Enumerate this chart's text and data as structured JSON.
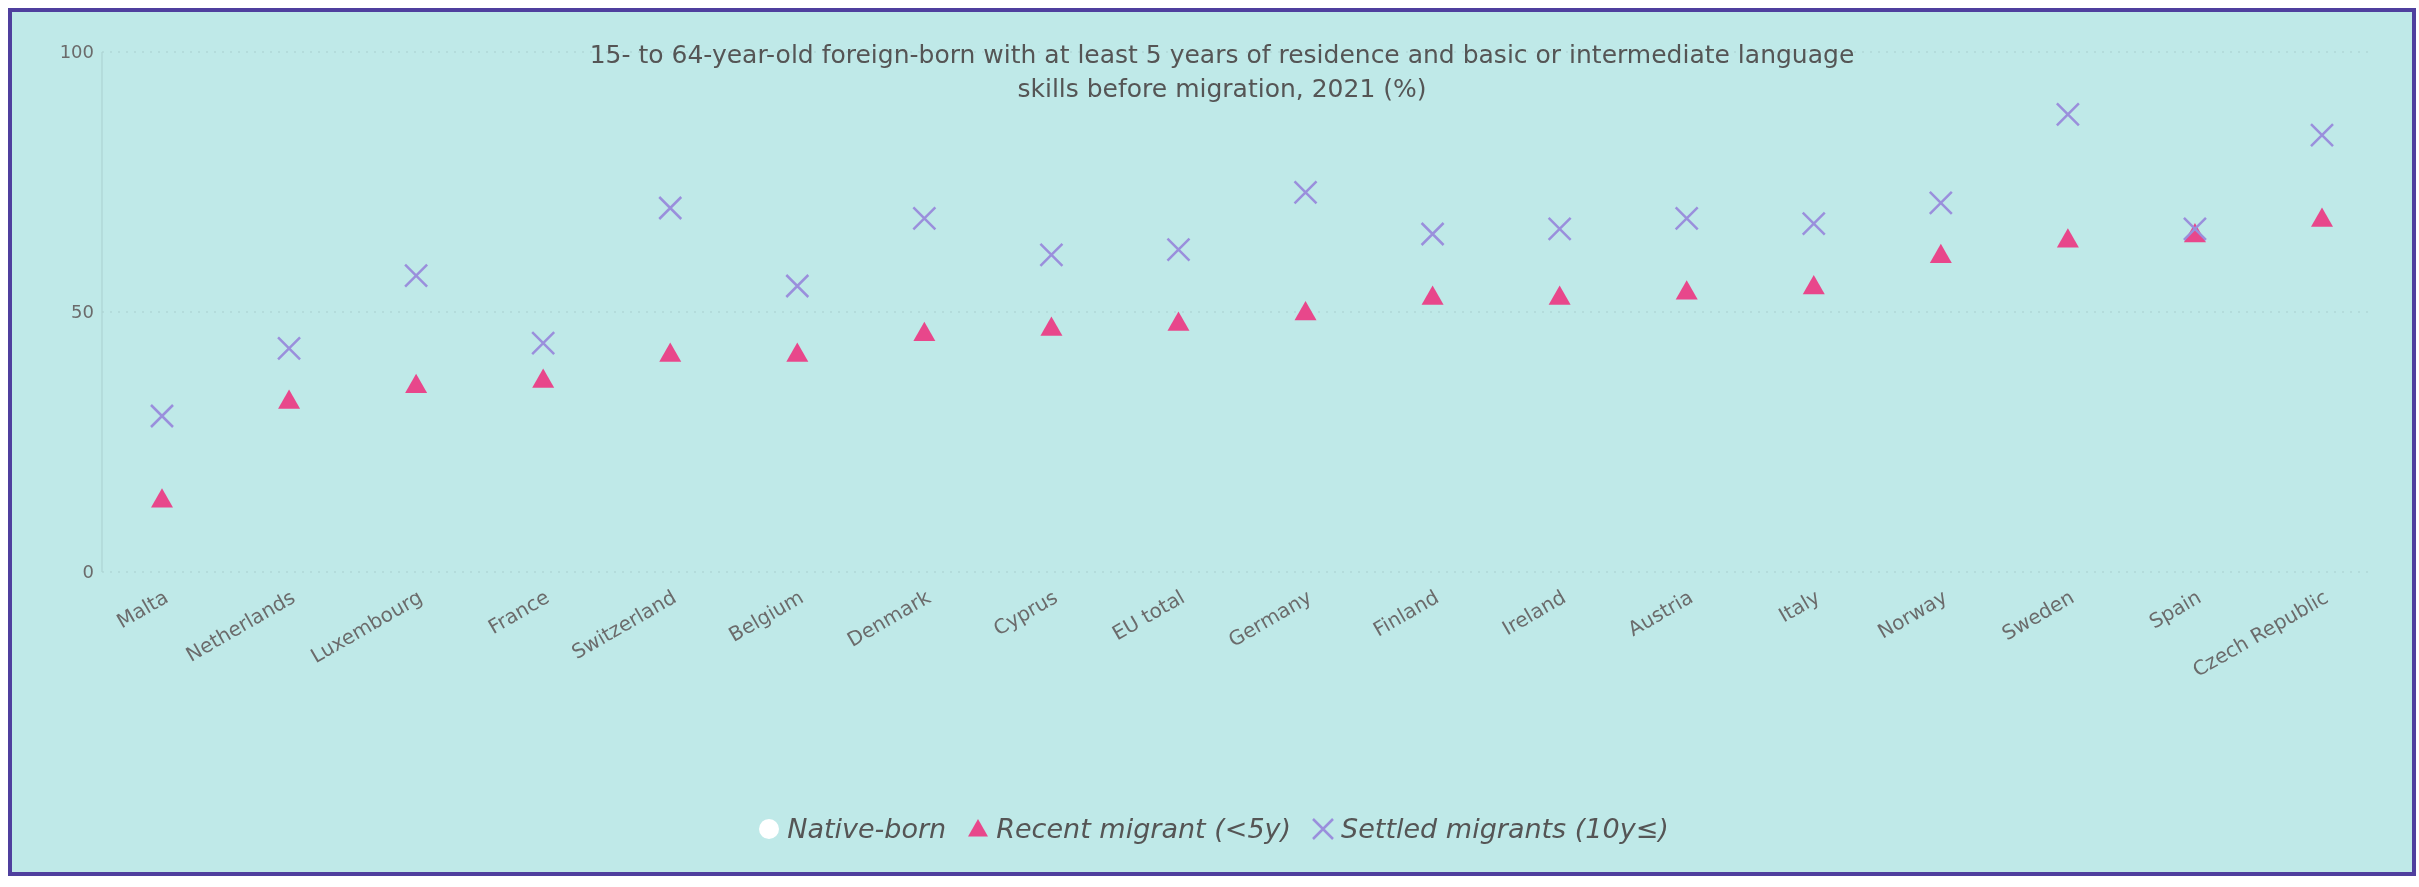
{
  "chart_data": {
    "type": "scatter",
    "title": "15- to 64-year-old foreign-born with at least 5 years of residence and basic or intermediate language skills before migration, 2021 (%)",
    "categories": [
      "Malta",
      "Netherlands",
      "Luxembourg",
      "France",
      "Switzerland",
      "Belgium",
      "Denmark",
      "Cyprus",
      "EU total",
      "Germany",
      "Finland",
      "Ireland",
      "Austria",
      "Italy",
      "Norway",
      "Sweden",
      "Spain",
      "Czech Republic"
    ],
    "series": [
      {
        "name": "Native-born",
        "color": "#ffffff",
        "marker": "circle",
        "values": [
          null,
          null,
          null,
          null,
          null,
          null,
          null,
          null,
          null,
          null,
          null,
          null,
          null,
          null,
          null,
          null,
          null,
          null
        ]
      },
      {
        "name": "Recent migrant (<5y)",
        "color": "#e8478b",
        "marker": "triangle",
        "values": [
          14,
          33,
          36,
          37,
          42,
          42,
          46,
          47,
          48,
          50,
          53,
          53,
          54,
          55,
          61,
          64,
          65,
          68
        ]
      },
      {
        "name": "Settled migrants (10y≤)",
        "color": "#9a8fdc",
        "marker": "cross",
        "values": [
          30,
          43,
          57,
          44,
          70,
          55,
          68,
          61,
          62,
          73,
          65,
          66,
          68,
          67,
          71,
          88,
          66,
          84
        ]
      }
    ],
    "ylim": [
      0,
      100
    ],
    "yticks": [
      0,
      50,
      100
    ],
    "grid": "y",
    "legend": "bottom"
  }
}
